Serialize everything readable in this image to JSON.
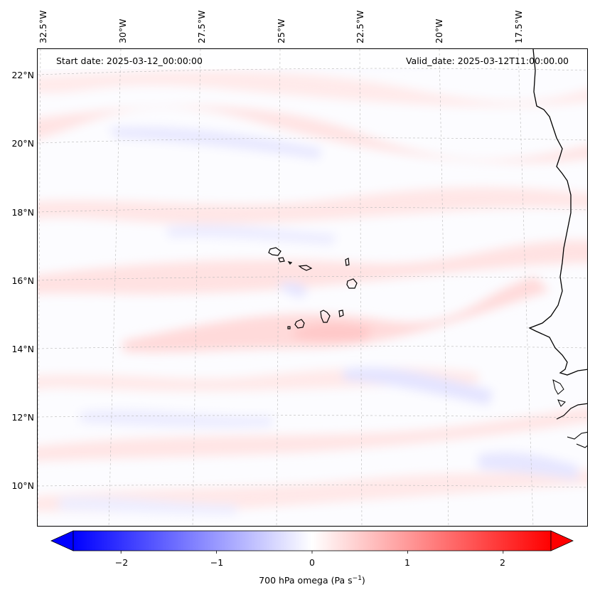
{
  "map": {
    "title_left": "Start date: 2025-03-12_00:00:00",
    "title_right": "Valid_date: 2025-03-12T11:00:00.00",
    "longitude_labels": [
      "32.5°W",
      "30°W",
      "27.5°W",
      "25°W",
      "22.5°W",
      "20°W",
      "17.5°W"
    ],
    "latitude_labels": [
      "22°N",
      "20°N",
      "18°N",
      "16°N",
      "14°N",
      "12°N",
      "10°N"
    ],
    "variable": "700 hPa omega",
    "units_base": "Pa s",
    "units_exp": "−1"
  },
  "colorbar": {
    "ticks": [
      "−2",
      "−1",
      "0",
      "1",
      "2"
    ],
    "range": [
      -2.5,
      2.5
    ],
    "colors": {
      "low": "#0000ff",
      "mid": "#ffffff",
      "high": "#ff0000"
    }
  }
}
